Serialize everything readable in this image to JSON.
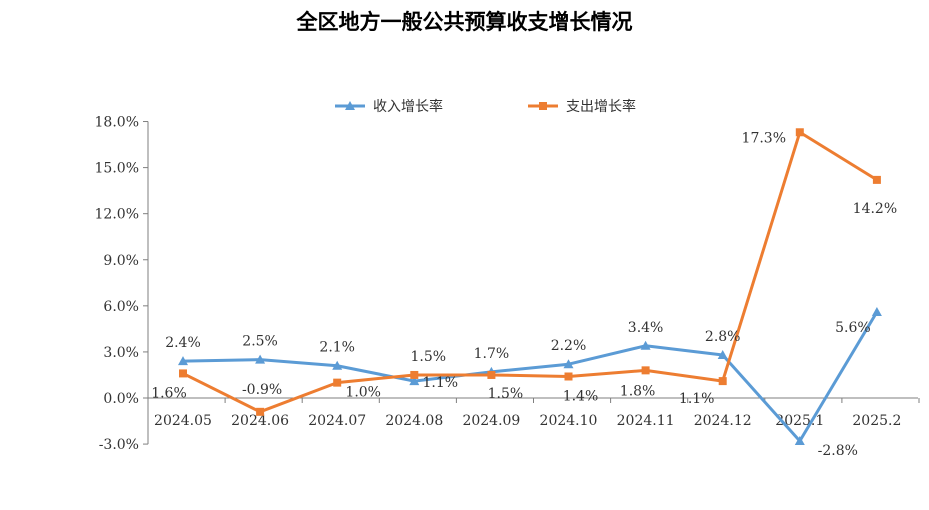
{
  "chart_data": {
    "type": "line",
    "title": "全区地方一般公共预算收支增长情况",
    "xlabel": "",
    "ylabel": "",
    "categories": [
      "2024.05",
      "2024.06",
      "2024.07",
      "2024.08",
      "2024.09",
      "2024.10",
      "2024.11",
      "2024.12",
      "2025.1",
      "2025.2"
    ],
    "ylim": [
      -3.0,
      18.0
    ],
    "yticks": [
      -3.0,
      0.0,
      3.0,
      6.0,
      9.0,
      12.0,
      15.0,
      18.0
    ],
    "ytick_labels": [
      "-3.0%",
      "0.0%",
      "3.0%",
      "6.0%",
      "9.0%",
      "12.0%",
      "15.0%",
      "18.0%"
    ],
    "grid": false,
    "legend_position": "top",
    "series": [
      {
        "name": "收入增长率",
        "marker": "triangle",
        "color": "#5B9BD5",
        "values": [
          2.4,
          2.5,
          2.1,
          1.1,
          1.7,
          2.2,
          3.4,
          2.8,
          -2.8,
          5.6
        ],
        "labels": [
          "2.4%",
          "2.5%",
          "2.1%",
          "1.1%",
          "1.7%",
          "2.2%",
          "3.4%",
          "2.8%",
          "-2.8%",
          "5.6%"
        ]
      },
      {
        "name": "支出增长率",
        "marker": "square",
        "color": "#ED7D31",
        "values": [
          1.6,
          -0.9,
          1.0,
          1.5,
          1.5,
          1.4,
          1.8,
          1.1,
          17.3,
          14.2
        ],
        "labels": [
          "1.6%",
          "-0.9%",
          "1.0%",
          "1.5%",
          "1.5%",
          "1.4%",
          "1.8%",
          "1.1%",
          "17.3%",
          "14.2%"
        ]
      }
    ]
  }
}
